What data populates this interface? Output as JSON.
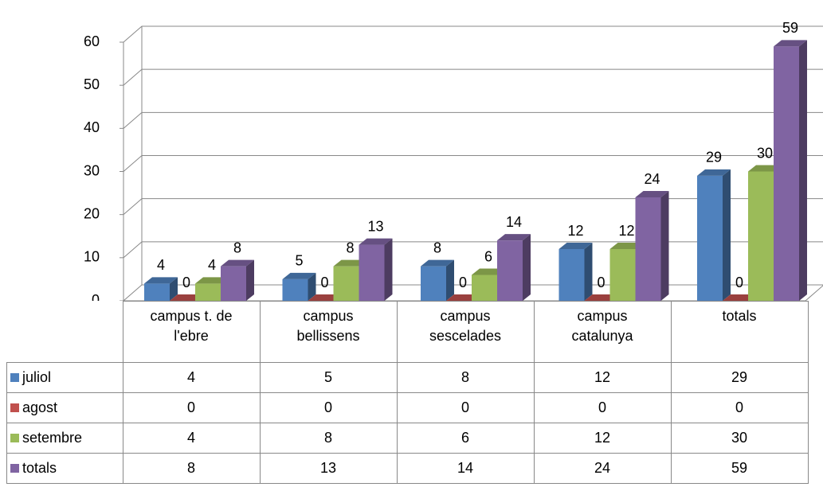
{
  "chart_data": {
    "type": "bar3d",
    "categories": [
      "campus t. de l'ebre",
      "campus bellissens",
      "campus sescelades",
      "campus catalunya",
      "totals"
    ],
    "series": [
      {
        "name": "juliol",
        "color": "#4F81BD",
        "values": [
          4,
          5,
          8,
          12,
          29
        ]
      },
      {
        "name": "agost",
        "color": "#C0504D",
        "values": [
          0,
          0,
          0,
          0,
          0
        ]
      },
      {
        "name": "setembre",
        "color": "#9BBB59",
        "values": [
          4,
          8,
          6,
          12,
          30
        ]
      },
      {
        "name": "totals",
        "color": "#8064A2",
        "values": [
          8,
          13,
          14,
          24,
          59
        ]
      }
    ],
    "ylim": [
      0,
      60
    ],
    "yticks": [
      0,
      10,
      20,
      30,
      40,
      50,
      60
    ],
    "grid": true,
    "data_table": true
  }
}
